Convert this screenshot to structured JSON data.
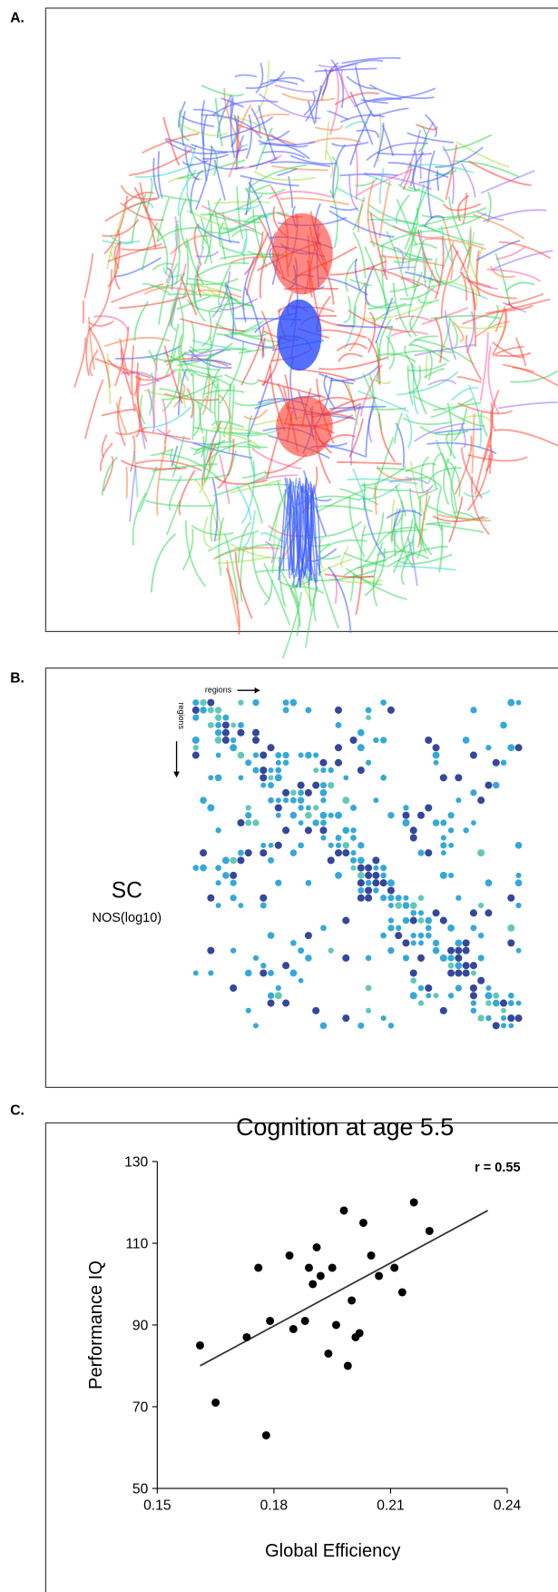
{
  "panel_labels": [
    "A.",
    "B.",
    "C."
  ],
  "matrix": {
    "title": "SC",
    "subtitle": "NOS(log10)",
    "x_label": "regions",
    "y_label": "regions"
  },
  "chart_data": {
    "type": "scatter",
    "title": "Cognition at age 5.5",
    "x_label": "Global Efficiency",
    "y_label": "Performance IQ",
    "annotation": "r = 0.55",
    "color": "#000000",
    "x": [
      0.161,
      0.165,
      0.173,
      0.176,
      0.178,
      0.179,
      0.184,
      0.185,
      0.188,
      0.189,
      0.19,
      0.191,
      0.192,
      0.194,
      0.195,
      0.196,
      0.198,
      0.199,
      0.2,
      0.201,
      0.202,
      0.203,
      0.205,
      0.207,
      0.211,
      0.213,
      0.216,
      0.22
    ],
    "values": [
      85,
      71,
      87,
      104,
      63,
      91,
      107,
      89,
      91,
      104,
      100,
      109,
      102,
      83,
      104,
      90,
      118,
      80,
      96,
      87,
      88,
      115,
      107,
      102,
      104,
      98,
      120,
      113
    ],
    "fit_line": {
      "x": [
        0.161,
        0.235
      ],
      "values": [
        80,
        118
      ]
    },
    "xlim": [
      0.15,
      0.24
    ],
    "xticks": [
      0.15,
      0.18,
      0.21,
      0.24
    ],
    "ylim": [
      50,
      130
    ],
    "yticks": [
      50,
      70,
      90,
      110,
      130
    ]
  }
}
